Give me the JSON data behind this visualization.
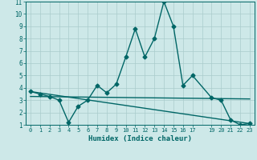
{
  "xlabel": "Humidex (Indice chaleur)",
  "bg_color": "#cde8e8",
  "grid_color": "#aacccc",
  "line_color": "#006666",
  "xlim": [
    -0.5,
    23.5
  ],
  "ylim": [
    1,
    11
  ],
  "xtick_positions": [
    0,
    1,
    2,
    3,
    4,
    5,
    6,
    7,
    8,
    9,
    10,
    11,
    12,
    13,
    14,
    15,
    16,
    17,
    19,
    20,
    21,
    22,
    23
  ],
  "xtick_labels": [
    "0",
    "1",
    "2",
    "3",
    "4",
    "5",
    "6",
    "7",
    "8",
    "9",
    "10",
    "11",
    "12",
    "13",
    "14",
    "15",
    "16",
    "17",
    "19",
    "20",
    "21",
    "22",
    "23"
  ],
  "yticks": [
    1,
    2,
    3,
    4,
    5,
    6,
    7,
    8,
    9,
    10,
    11
  ],
  "series1_x": [
    0,
    1,
    2,
    3,
    4,
    5,
    6,
    7,
    8,
    9,
    10,
    11,
    12,
    13,
    14,
    15,
    16,
    17,
    19,
    20,
    21,
    22,
    23
  ],
  "series1_y": [
    3.7,
    3.5,
    3.3,
    3.0,
    1.2,
    2.5,
    3.0,
    4.2,
    3.6,
    4.3,
    6.5,
    8.8,
    6.5,
    8.0,
    11.0,
    9.0,
    4.2,
    5.0,
    3.2,
    3.0,
    1.4,
    1.0,
    1.1
  ],
  "series2_x": [
    0,
    23
  ],
  "series2_y": [
    3.3,
    3.1
  ],
  "series3_x": [
    0,
    23
  ],
  "series3_y": [
    3.7,
    1.1
  ],
  "marker_size": 2.5,
  "linewidth": 1.0
}
